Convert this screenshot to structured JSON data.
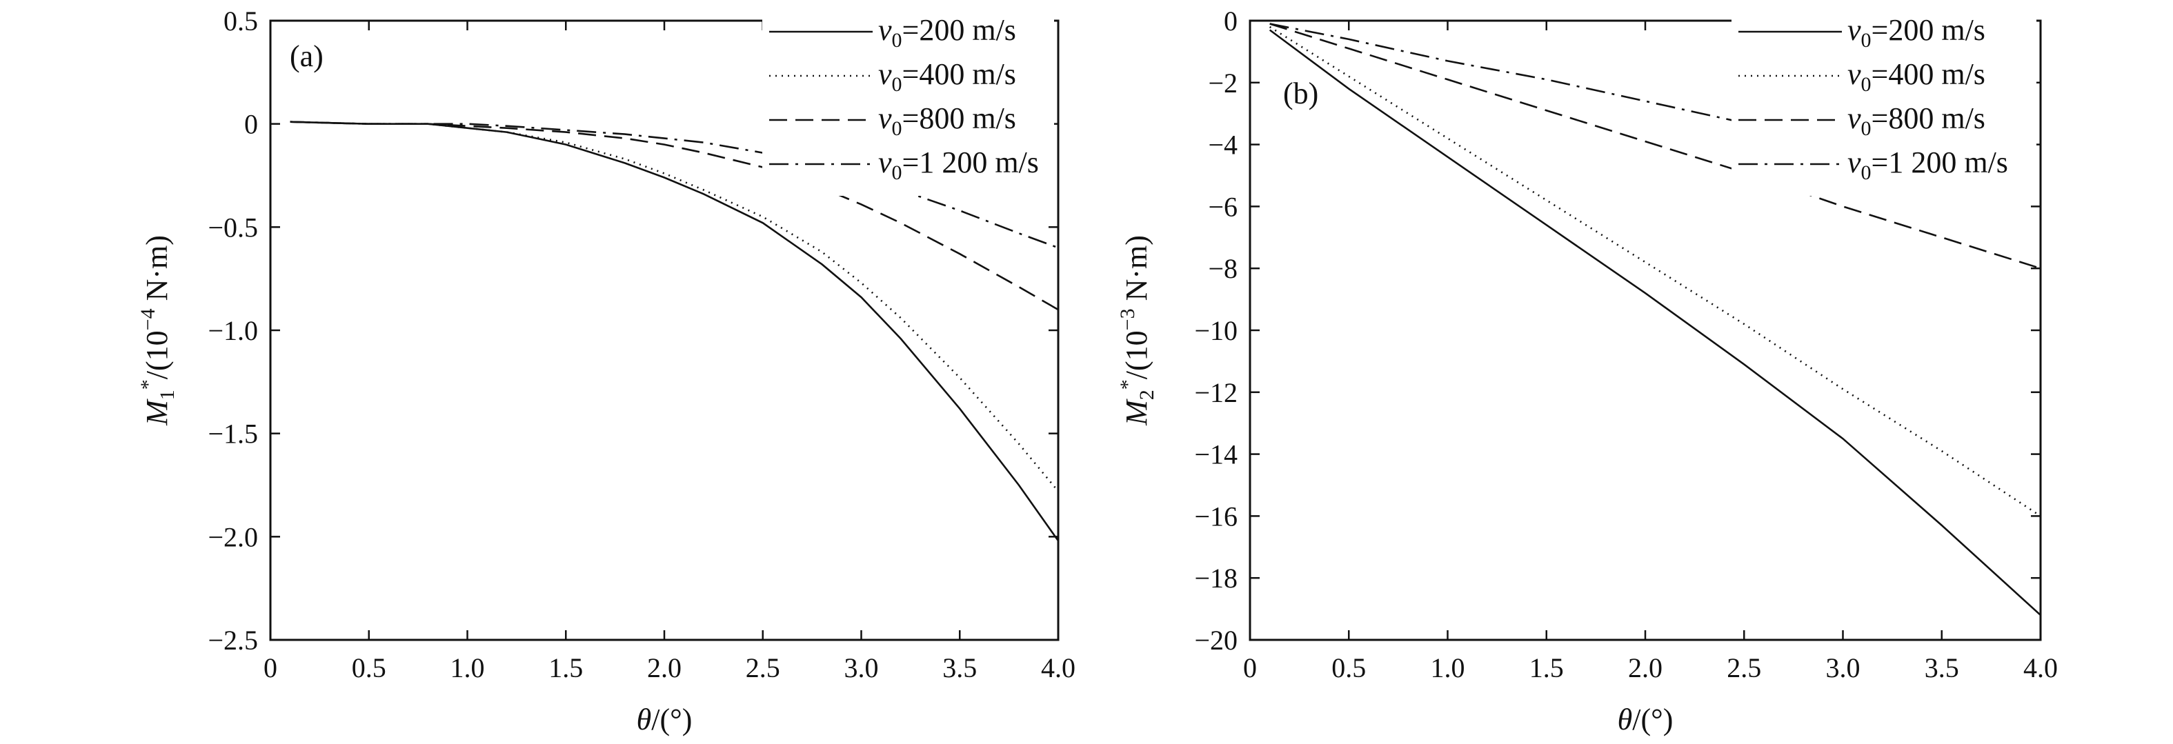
{
  "chart_data": [
    {
      "type": "line",
      "panel_label": "(a)",
      "xlabel": "θ/(°)",
      "ylabel": {
        "symbol": "M",
        "subscript": "1",
        "superscript": "*",
        "unit_prefix": "/(10",
        "unit_exp": "−4",
        "unit_suffix": " N·m)"
      },
      "xlim": [
        0,
        4.0
      ],
      "ylim": [
        -2.5,
        0.5
      ],
      "xticks": [
        0,
        0.5,
        1.0,
        1.5,
        2.0,
        2.5,
        3.0,
        3.5,
        4.0
      ],
      "xtick_labels": [
        "0",
        "0.5",
        "1.0",
        "1.5",
        "2.0",
        "2.5",
        "3.0",
        "3.5",
        "4.0"
      ],
      "yticks": [
        0.5,
        0,
        -0.5,
        -1.0,
        -1.5,
        -2.0,
        -2.5
      ],
      "ytick_labels": [
        "0.5",
        "0",
        "−0.5",
        "−1.0",
        "−1.5",
        "−2.0",
        "−2.5"
      ],
      "grid": false,
      "legend_position": "top-right",
      "x": [
        0.1,
        0.5,
        0.8,
        1.0,
        1.2,
        1.5,
        1.8,
        2.0,
        2.2,
        2.5,
        2.8,
        3.0,
        3.2,
        3.5,
        3.8,
        4.0
      ],
      "series": [
        {
          "name": "v0=200 m/s",
          "style": "solid",
          "values": [
            0.01,
            0.0,
            0.0,
            -0.02,
            -0.04,
            -0.1,
            -0.19,
            -0.26,
            -0.34,
            -0.48,
            -0.68,
            -0.84,
            -1.04,
            -1.38,
            -1.75,
            -2.02
          ]
        },
        {
          "name": "v0=400 m/s",
          "style": "dotted",
          "values": [
            0.01,
            0.0,
            0.0,
            -0.02,
            -0.04,
            -0.09,
            -0.17,
            -0.24,
            -0.32,
            -0.45,
            -0.62,
            -0.77,
            -0.94,
            -1.23,
            -1.55,
            -1.78
          ]
        },
        {
          "name": "v0=800 m/s",
          "style": "dashed",
          "values": [
            0.01,
            0.0,
            0.0,
            -0.01,
            -0.02,
            -0.04,
            -0.07,
            -0.1,
            -0.14,
            -0.21,
            -0.31,
            -0.39,
            -0.48,
            -0.63,
            -0.79,
            -0.9
          ]
        },
        {
          "name": "v0=1 200 m/s",
          "style": "dashdot",
          "values": [
            0.01,
            0.0,
            0.0,
            0.0,
            -0.01,
            -0.03,
            -0.05,
            -0.07,
            -0.09,
            -0.14,
            -0.2,
            -0.26,
            -0.32,
            -0.42,
            -0.53,
            -0.6
          ]
        }
      ]
    },
    {
      "type": "line",
      "panel_label": "(b)",
      "xlabel": "θ/(°)",
      "ylabel": {
        "symbol": "M",
        "subscript": "2",
        "superscript": "*",
        "unit_prefix": "/(10",
        "unit_exp": "−3",
        "unit_suffix": " N·m)"
      },
      "xlim": [
        0,
        4.0
      ],
      "ylim": [
        -20,
        0
      ],
      "xticks": [
        0,
        0.5,
        1.0,
        1.5,
        2.0,
        2.5,
        3.0,
        3.5,
        4.0
      ],
      "xtick_labels": [
        "0",
        "0.5",
        "1.0",
        "1.5",
        "2.0",
        "2.5",
        "3.0",
        "3.5",
        "4.0"
      ],
      "yticks": [
        0,
        -2,
        -4,
        -6,
        -8,
        -10,
        -12,
        -14,
        -16,
        -18,
        -20
      ],
      "ytick_labels": [
        "0",
        "−2",
        "−4",
        "−6",
        "−8",
        "−10",
        "−12",
        "−14",
        "−16",
        "−18",
        "−20"
      ],
      "grid": false,
      "legend_position": "top-right",
      "x": [
        0.1,
        0.5,
        1.0,
        1.5,
        2.0,
        2.5,
        3.0,
        3.5,
        4.0
      ],
      "series": [
        {
          "name": "v0=200 m/s",
          "style": "solid",
          "values": [
            -0.3,
            -2.2,
            -4.4,
            -6.6,
            -8.8,
            -11.1,
            -13.5,
            -16.3,
            -19.2
          ]
        },
        {
          "name": "v0=400 m/s",
          "style": "dotted",
          "values": [
            -0.2,
            -1.8,
            -3.8,
            -5.8,
            -7.8,
            -9.8,
            -11.9,
            -13.9,
            -16.0
          ]
        },
        {
          "name": "v0=800 m/s",
          "style": "dashed",
          "values": [
            -0.1,
            -0.9,
            -1.9,
            -2.9,
            -3.9,
            -4.9,
            -6.0,
            -7.0,
            -8.0
          ]
        },
        {
          "name": "v0=1 200 m/s",
          "style": "dashdot",
          "values": [
            -0.1,
            -0.6,
            -1.3,
            -1.9,
            -2.6,
            -3.3,
            -4.0,
            -4.6,
            -5.3
          ]
        }
      ]
    }
  ],
  "legend_labels": [
    {
      "var": "v",
      "sub": "0",
      "rest": "=200 m/s"
    },
    {
      "var": "v",
      "sub": "0",
      "rest": "=400 m/s"
    },
    {
      "var": "v",
      "sub": "0",
      "rest": "=800 m/s"
    },
    {
      "var": "v",
      "sub": "0",
      "rest": "=1 200 m/s"
    }
  ],
  "xlabel_parts": {
    "var": "θ",
    "rest": "/(°)"
  }
}
